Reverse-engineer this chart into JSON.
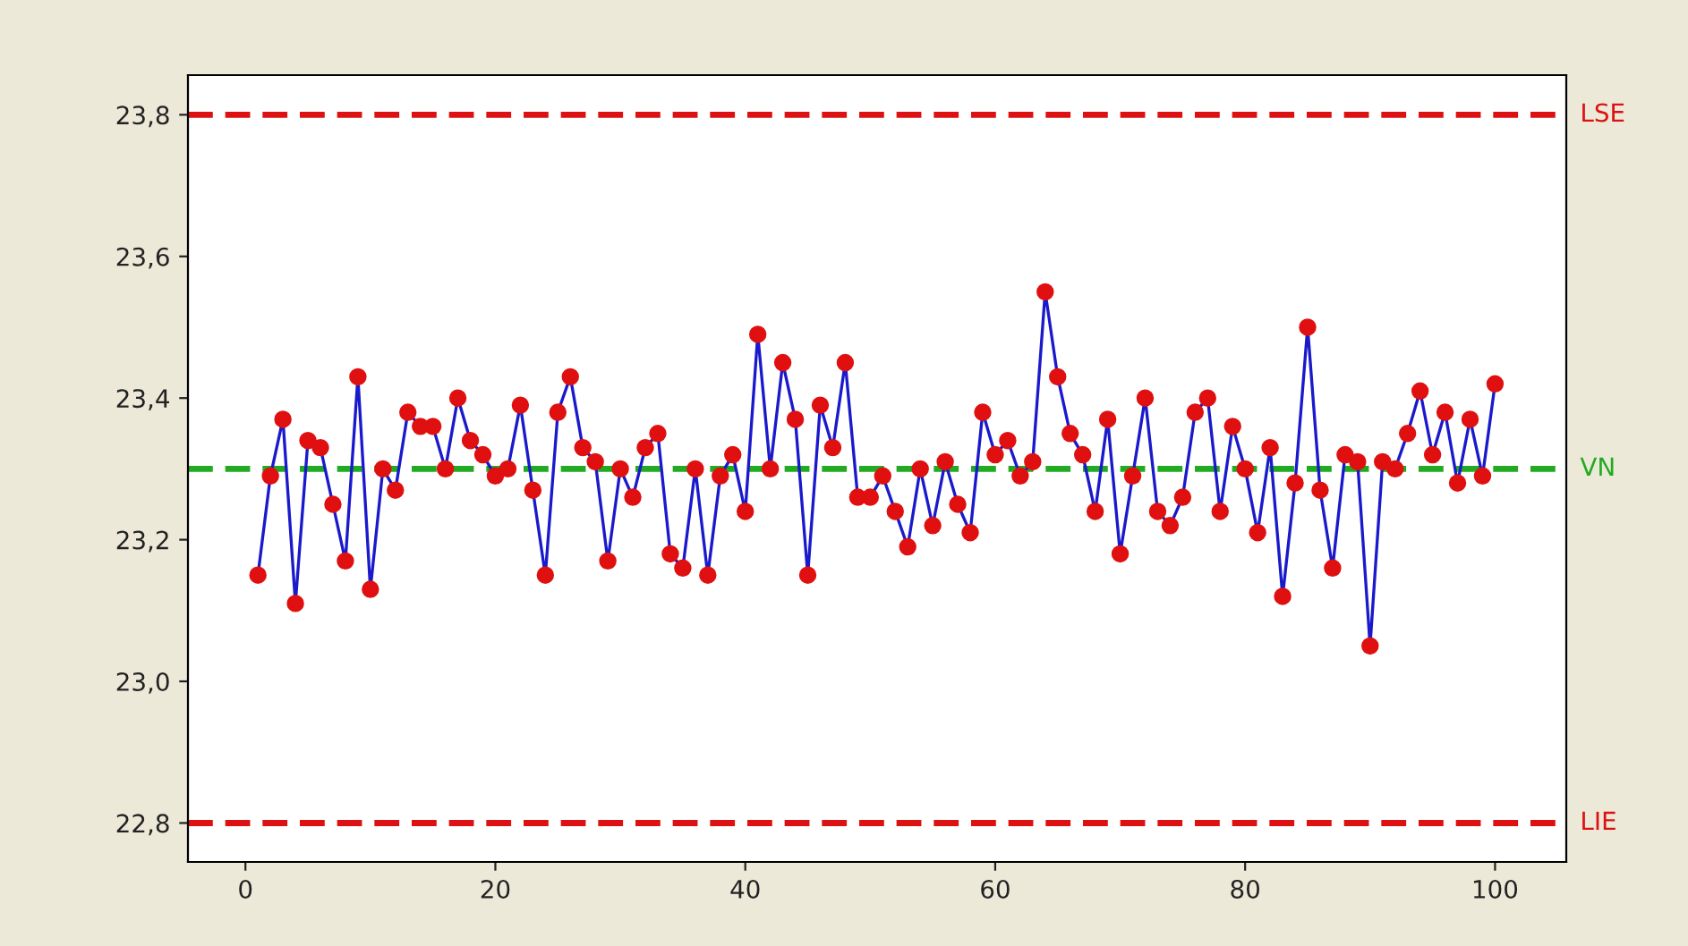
{
  "chart_data": {
    "type": "line",
    "x": [
      1,
      2,
      3,
      4,
      5,
      6,
      7,
      8,
      9,
      10,
      11,
      12,
      13,
      14,
      15,
      16,
      17,
      18,
      19,
      20,
      21,
      22,
      23,
      24,
      25,
      26,
      27,
      28,
      29,
      30,
      31,
      32,
      33,
      34,
      35,
      36,
      37,
      38,
      39,
      40,
      41,
      42,
      43,
      44,
      45,
      46,
      47,
      48,
      49,
      50,
      51,
      52,
      53,
      54,
      55,
      56,
      57,
      58,
      59,
      60,
      61,
      62,
      63,
      64,
      65,
      66,
      67,
      68,
      69,
      70,
      71,
      72,
      73,
      74,
      75,
      76,
      77,
      78,
      79,
      80,
      81,
      82,
      83,
      84,
      85,
      86,
      87,
      88,
      89,
      90,
      91,
      92,
      93,
      94,
      95,
      96,
      97,
      98,
      99,
      100
    ],
    "series": [
      {
        "color": "#1a1acc",
        "values": [
          23.15,
          23.29,
          23.37,
          23.11,
          23.34,
          23.33,
          23.25,
          23.17,
          23.43,
          23.13,
          23.3,
          23.27,
          23.38,
          23.36,
          23.36,
          23.3,
          23.4,
          23.34,
          23.32,
          23.29,
          23.3,
          23.39,
          23.27,
          23.15,
          23.38,
          23.43,
          23.33,
          23.31,
          23.17,
          23.3,
          23.26,
          23.33,
          23.35,
          23.18,
          23.16,
          23.3,
          23.15,
          23.29,
          23.32,
          23.24,
          23.49,
          23.3,
          23.45,
          23.37,
          23.15,
          23.39,
          23.33,
          23.45,
          23.26,
          23.26,
          23.29,
          23.24,
          23.19,
          23.3,
          23.22,
          23.31,
          23.25,
          23.21,
          23.38,
          23.32,
          23.34,
          23.29,
          23.31,
          23.55,
          23.43,
          23.35,
          23.32,
          23.24,
          23.37,
          23.18,
          23.29,
          23.4,
          23.24,
          23.22,
          23.26,
          23.38,
          23.4,
          23.24,
          23.36,
          23.3,
          23.21,
          23.33,
          23.12,
          23.28,
          23.5,
          23.27,
          23.16,
          23.32,
          23.31,
          23.05,
          23.31,
          23.3,
          23.35,
          23.41,
          23.32,
          23.38,
          23.28,
          23.37,
          23.29,
          23.42
        ]
      }
    ],
    "xlim": [
      -4.6,
      105.7
    ],
    "ylim": [
      22.745,
      23.856
    ],
    "xticks": [
      0,
      20,
      40,
      60,
      80,
      100
    ],
    "yticks": [
      {
        "value": 22.8,
        "label": "22,8"
      },
      {
        "value": 23.0,
        "label": "23,0"
      },
      {
        "value": 23.2,
        "label": "23,2"
      },
      {
        "value": 23.4,
        "label": "23,4"
      },
      {
        "value": 23.6,
        "label": "23,6"
      },
      {
        "value": 23.8,
        "label": "23,8"
      }
    ],
    "ref_lines": [
      {
        "axis": "y",
        "value": 23.8,
        "label": "LSE",
        "color": "#dd1111",
        "line_style": "dashed"
      },
      {
        "axis": "y",
        "value": 23.3,
        "label": "VN",
        "color": "#22aa22",
        "line_style": "dashed"
      },
      {
        "axis": "y",
        "value": 22.8,
        "label": "LIE",
        "color": "#dd1111",
        "line_style": "dashed"
      }
    ],
    "marker": "circle",
    "line_style": "solid",
    "grid": false,
    "legend": false
  }
}
